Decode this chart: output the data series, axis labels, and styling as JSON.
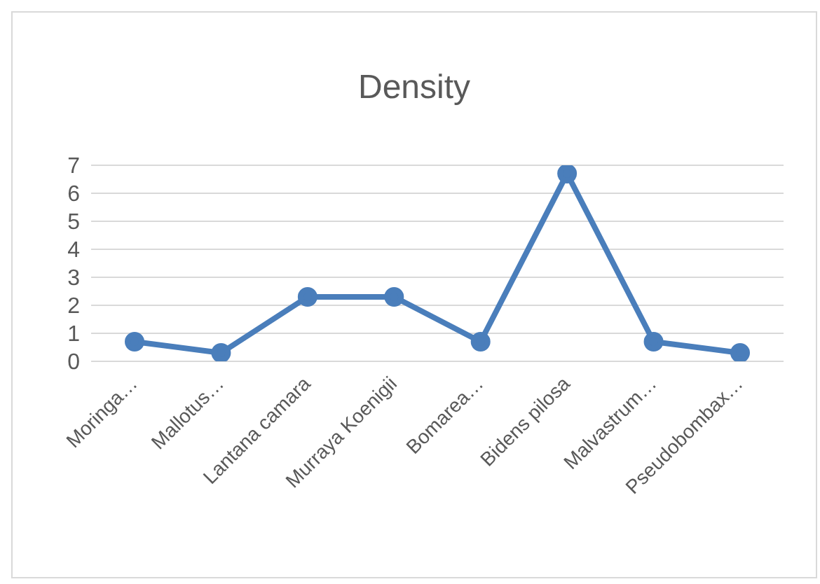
{
  "chart_data": {
    "type": "line",
    "title": "Density",
    "categories": [
      "Moringa…",
      "Mallotus…",
      "Lantana camara",
      "Murraya Koenigii",
      "Bomarea…",
      "Bidens pilosa",
      "Malvastrum…",
      "Pseudobombax…"
    ],
    "series": [
      {
        "color": "#4a7ebb",
        "values": [
          0.7,
          0.3,
          2.3,
          2.3,
          0.7,
          6.7,
          0.7,
          0.3
        ]
      }
    ],
    "ylim": [
      0,
      7
    ],
    "yticks": [
      0,
      1,
      2,
      3,
      4,
      5,
      6,
      7
    ],
    "grid": "y",
    "marker": "circle",
    "line_style": "solid"
  }
}
